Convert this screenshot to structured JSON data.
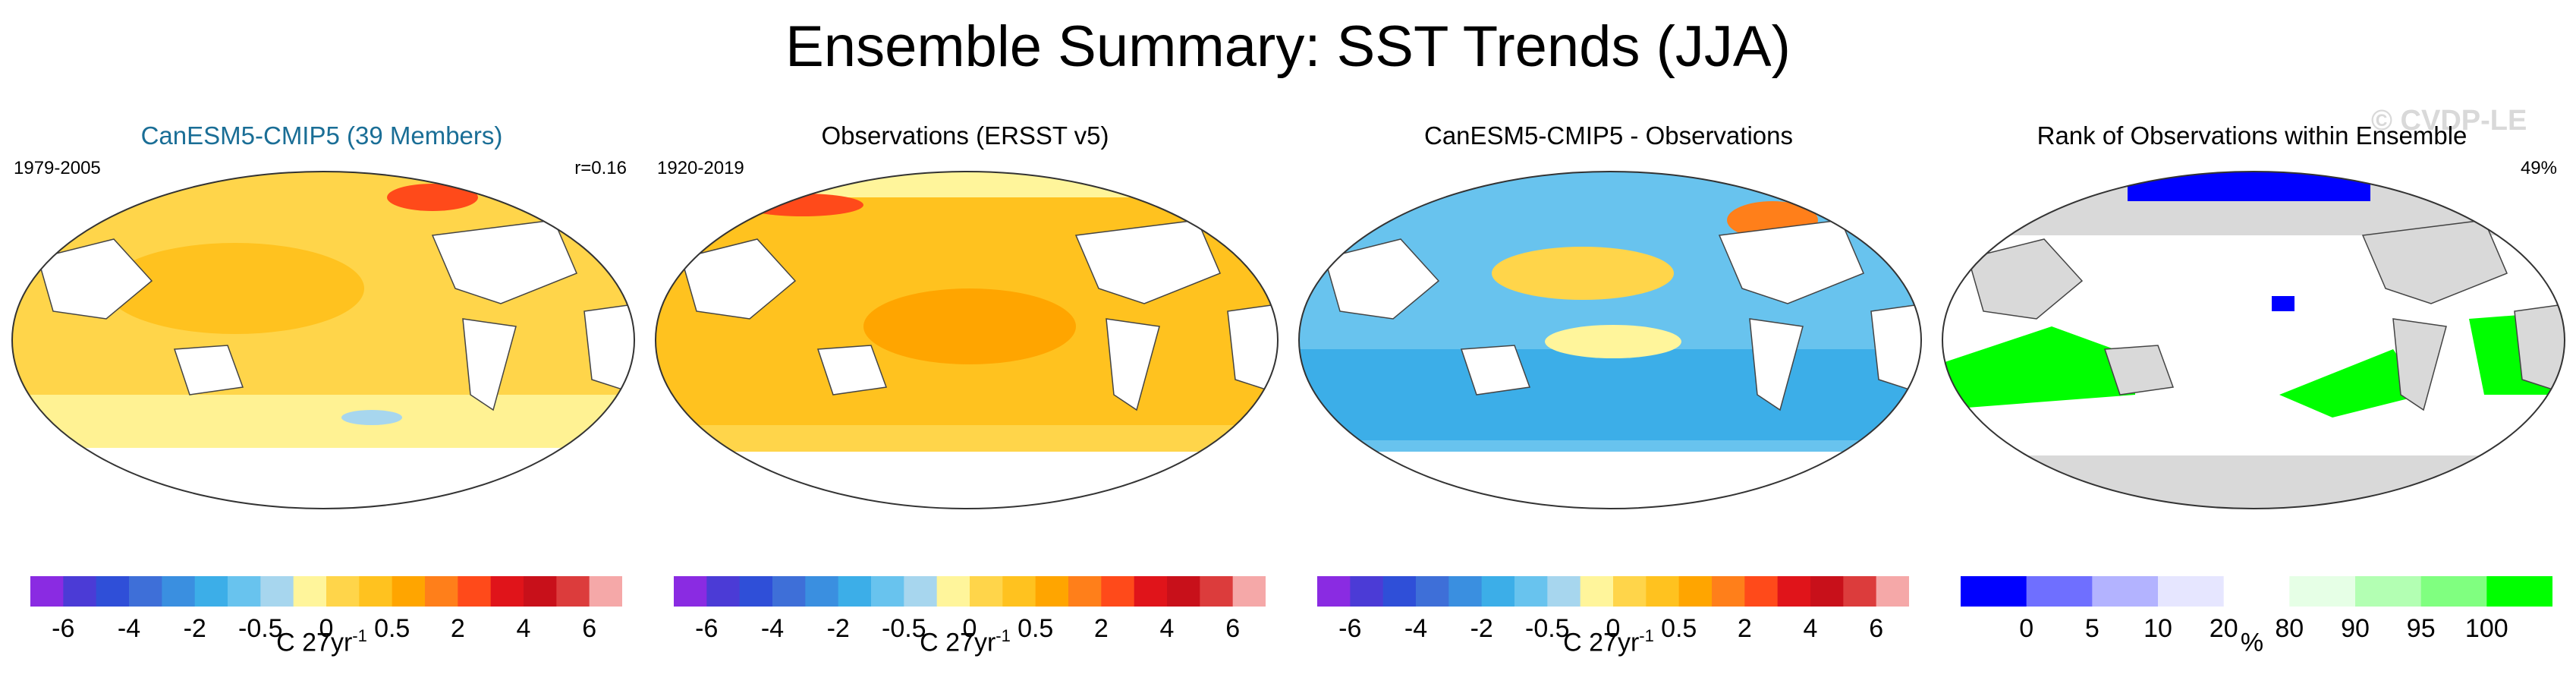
{
  "title": "Ensemble Summary: SST Trends (JJA)",
  "watermark": "© CVDP-LE",
  "chart_data": [
    {
      "type": "heatmap",
      "title": "CanESM5-CMIP5 (39 Members)",
      "left_label": "1979-2005",
      "right_label": "r=0.16",
      "colorbar": {
        "colors": [
          "#8a2be2",
          "#4b3bd6",
          "#2f4fd8",
          "#3e6fd8",
          "#3a8fe0",
          "#3caee8",
          "#68c3ee",
          "#a7d6ee",
          "#fff59b",
          "#ffd54a",
          "#ffc21f",
          "#ffa500",
          "#ff7f1a",
          "#ff4a1a",
          "#e0141a",
          "#c8101a",
          "#dc3c3c",
          "#f5a8a8"
        ],
        "ticks": [
          "-6",
          "-4",
          "-2",
          "-0.5",
          "0",
          "0.5",
          "2",
          "4",
          "6"
        ],
        "unit": "C 27yr",
        "unit_sup": "-1"
      },
      "field_summary": "Mostly 0.5 to 2 C warming; local 2–4 C in North Pacific/Arctic; weak trends near Southern Ocean"
    },
    {
      "type": "heatmap",
      "title": "Observations (ERSST v5)",
      "left_label": "1920-2019",
      "right_label": "",
      "colorbar": {
        "colors": [
          "#8a2be2",
          "#4b3bd6",
          "#2f4fd8",
          "#3e6fd8",
          "#3a8fe0",
          "#3caee8",
          "#68c3ee",
          "#a7d6ee",
          "#fff59b",
          "#ffd54a",
          "#ffc21f",
          "#ffa500",
          "#ff7f1a",
          "#ff4a1a",
          "#e0141a",
          "#c8101a",
          "#dc3c3c",
          "#f5a8a8"
        ],
        "ticks": [
          "-6",
          "-4",
          "-2",
          "-0.5",
          "0",
          "0.5",
          "2",
          "4",
          "6"
        ],
        "unit": "C 27yr",
        "unit_sup": "-1"
      },
      "field_summary": "Mostly 0.5 to 2 C warming; up to 4 C in North Atlantic/Arctic margins"
    },
    {
      "type": "heatmap",
      "title": "CanESM5-CMIP5 - Observations",
      "left_label": "",
      "right_label": "",
      "colorbar": {
        "colors": [
          "#8a2be2",
          "#4b3bd6",
          "#2f4fd8",
          "#3e6fd8",
          "#3a8fe0",
          "#3caee8",
          "#68c3ee",
          "#a7d6ee",
          "#fff59b",
          "#ffd54a",
          "#ffc21f",
          "#ffa500",
          "#ff7f1a",
          "#ff4a1a",
          "#e0141a",
          "#c8101a",
          "#dc3c3c",
          "#f5a8a8"
        ],
        "ticks": [
          "-6",
          "-4",
          "-2",
          "-0.5",
          "0",
          "0.5",
          "2",
          "4",
          "6"
        ],
        "unit": "C 27yr",
        "unit_sup": "-1"
      },
      "field_summary": "Mostly -0.5 to -2 C differences; positive bands in tropical/North Pacific"
    },
    {
      "type": "heatmap",
      "title": "Rank of Observations within Ensemble",
      "left_label": "",
      "right_label": "49%",
      "colorbar": {
        "colors": [
          "#0000ff",
          "#6f6fff",
          "#b3b3ff",
          "#e6e6ff",
          "#ffffff",
          "#e6ffe6",
          "#b3ffb3",
          "#80ff80",
          "#00ff00"
        ],
        "ticks": [
          "0",
          "5",
          "10",
          "20",
          "80",
          "90",
          "95",
          "100"
        ],
        "unit": "%",
        "unit_sup": ""
      },
      "field_summary": "Largely 20-80% (white), extensive 100% (green) regions in Southern Hemisphere, 0% (blue) patches in Arctic"
    }
  ]
}
